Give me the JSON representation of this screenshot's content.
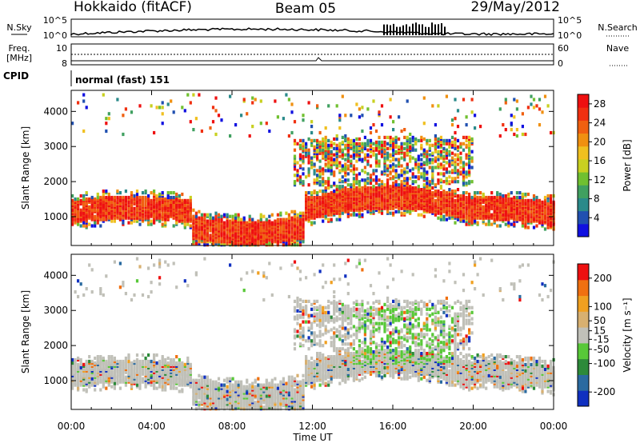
{
  "header": {
    "station": "Hokkaido (fitACF)",
    "beam": "Beam 05",
    "date": "29/May/2012"
  },
  "summary_panel": {
    "nsky_label": "N.Sky",
    "nsearch_label": "N.Search",
    "freq_label_line1": "Freq.",
    "freq_label_line2": "[MHz]",
    "nave_label": "Nave",
    "cpid_label": "CPID",
    "cpid_value": "normal (fast) 151",
    "noise_ticks_left": [
      "10^5",
      "10^0"
    ],
    "noise_ticks_right": [
      "10^5",
      "10^0"
    ],
    "freq_ticks": [
      "10",
      "8"
    ],
    "nave_ticks": [
      "60",
      "0"
    ]
  },
  "chart_data": [
    {
      "type": "heatmap",
      "name": "power",
      "ylabel": "Slant Range [km]",
      "xlabel": "",
      "x_ticks": [
        "00:00",
        "04:00",
        "08:00",
        "12:00",
        "16:00",
        "20:00",
        "00:00"
      ],
      "xlim_hours": [
        0,
        24
      ],
      "y_ticks": [
        1000,
        2000,
        3000,
        4000
      ],
      "ylim": [
        180,
        4600
      ],
      "colorbar": {
        "label": "Power [dB]",
        "ticks": [
          4,
          8,
          12,
          16,
          20,
          24,
          28
        ],
        "range": [
          0,
          30
        ],
        "colors": [
          "#1010e0",
          "#2050b0",
          "#2a8a8a",
          "#40a060",
          "#70c030",
          "#c8d020",
          "#f0c020",
          "#f09010",
          "#f06010",
          "#f03010",
          "#ee1010"
        ]
      }
    },
    {
      "type": "heatmap",
      "name": "velocity",
      "ylabel": "Slant Range [km]",
      "xlabel": "Time UT",
      "x_ticks": [
        "00:00",
        "04:00",
        "08:00",
        "12:00",
        "16:00",
        "20:00",
        "00:00"
      ],
      "xlim_hours": [
        0,
        24
      ],
      "y_ticks": [
        1000,
        2000,
        3000,
        4000
      ],
      "ylim": [
        180,
        4600
      ],
      "colorbar": {
        "label": "Velocity [m s⁻¹]",
        "ticks": [
          200,
          100,
          50,
          15,
          -15,
          -50,
          -100,
          -200
        ],
        "range": [
          -250,
          250
        ],
        "colors": [
          "#1030c0",
          "#2a6aa0",
          "#2d8a3a",
          "#58c838",
          "#c0c0b8",
          "#d8b070",
          "#f0a020",
          "#f07010",
          "#ee1010"
        ]
      }
    }
  ]
}
